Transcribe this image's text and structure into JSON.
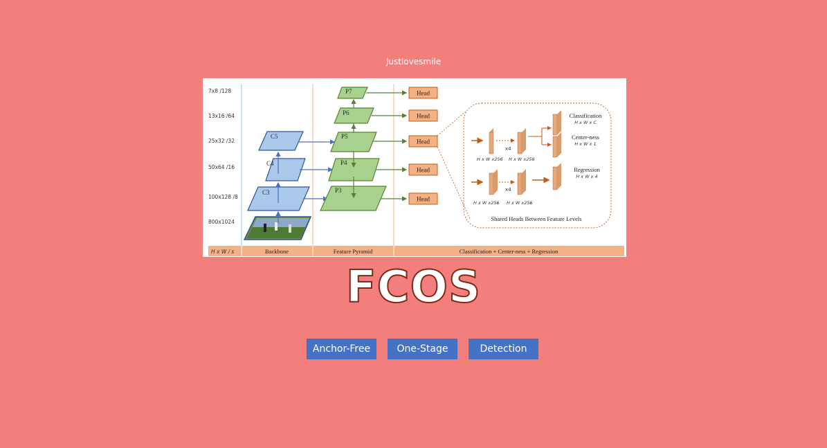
{
  "header": {
    "author": "Justlovesmile"
  },
  "title": "FCOS",
  "tags": [
    {
      "label": "Anchor-Free"
    },
    {
      "label": "One-Stage"
    },
    {
      "label": "Detection"
    }
  ],
  "diagram": {
    "scales": [
      "7x8  /128",
      "13x16  /64",
      "25x32  /32",
      "50x64  /16",
      "100x128  /8",
      "800x1024"
    ],
    "footer": {
      "hw_label": "H x W  / s",
      "backbone": "Backbone",
      "feature_pyramid": "Feature Pyramid",
      "heads": "Classification + Center-ness + Regression"
    },
    "backbone_levels": [
      "C5",
      "C4",
      "C3"
    ],
    "pyramid_levels": [
      "P7",
      "P6",
      "P5",
      "P4",
      "P3"
    ],
    "head_label": "Head",
    "head_detail": {
      "classification": "Classification",
      "classification_dim": "H x W x C",
      "centerness": "Center-ness",
      "centerness_dim": "H x W x 1",
      "regression": "Regression",
      "regression_dim": "H x W x 4",
      "repeat": "x4",
      "feat_dim": "H x W x256",
      "caption": "Shared Heads Between Feature Levels"
    },
    "colors": {
      "backbone_fill": "#a9c8ea",
      "pyramid_fill": "#a9d18e",
      "head_fill": "#f4b183",
      "arrow_orange": "#c55a11",
      "arrow_green": "#548235",
      "arrow_blue": "#4472c4",
      "footer_band": "#f4b183"
    }
  }
}
